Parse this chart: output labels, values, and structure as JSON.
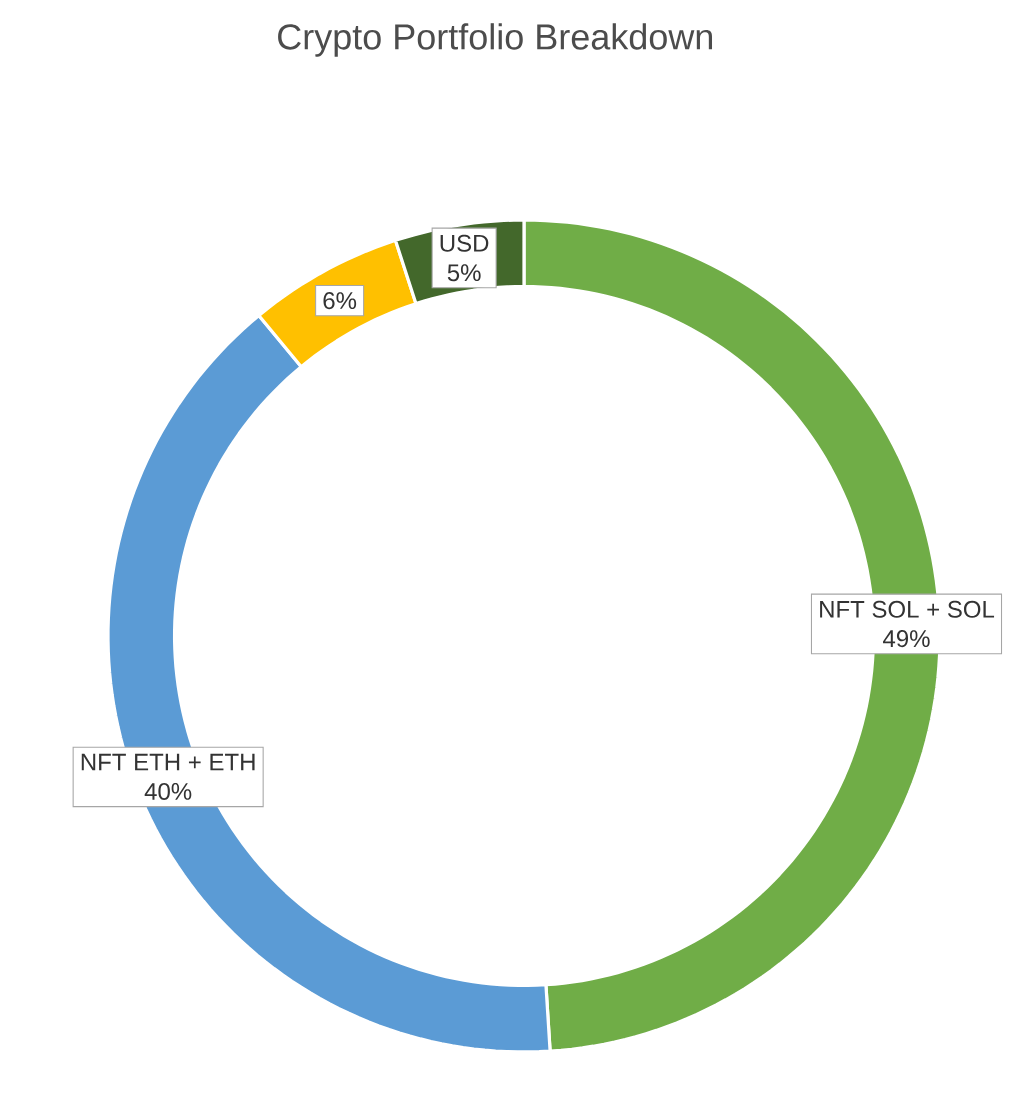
{
  "chart_data": {
    "type": "donut",
    "title": "Crypto Portfolio Breakdown",
    "categories": [
      "NFT SOL + SOL",
      "NFT ETH + ETH",
      null,
      "USD"
    ],
    "values": [
      49,
      40,
      6,
      5
    ],
    "value_labels": [
      "49%",
      "40%",
      "6%",
      "5%"
    ],
    "colors": [
      "#70ad47",
      "#5b9bd5",
      "#ffc000",
      "#43682b"
    ]
  }
}
